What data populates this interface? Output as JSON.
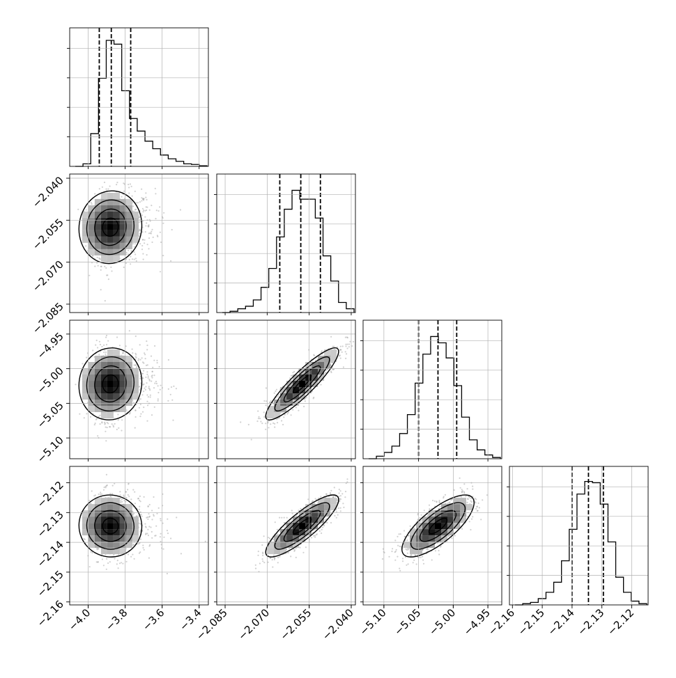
{
  "chart_data": {
    "type": "corner",
    "parameters": [
      {
        "range": [
          -4.1,
          -3.35
        ],
        "ticks": [
          -4.0,
          -3.8,
          -3.6,
          -3.4
        ],
        "tick_labels": [
          "−4.0",
          "−3.8",
          "−3.6",
          "−3.4"
        ],
        "quantiles": [
          -3.94,
          -3.875,
          -3.77
        ],
        "mode": -3.88,
        "std": [
          0.05,
          0.12
        ],
        "hist_counts": [
          0.0,
          0.02,
          0.26,
          0.7,
          1.0,
          0.97,
          0.6,
          0.38,
          0.28,
          0.2,
          0.14,
          0.09,
          0.06,
          0.04,
          0.02,
          0.015,
          0.005
        ]
      },
      {
        "range": [
          -2.088,
          -2.0385
        ],
        "ticks": [
          -2.085,
          -2.07,
          -2.055,
          -2.04
        ],
        "tick_labels": [
          "−2.085",
          "−2.070",
          "−2.055",
          "−2.040"
        ],
        "quantiles": [
          -2.0655,
          -2.058,
          -2.051
        ],
        "mode": -2.0575,
        "std": [
          0.0065,
          0.0065
        ],
        "hist_counts": [
          0.0,
          0.01,
          0.03,
          0.05,
          0.1,
          0.2,
          0.35,
          0.6,
          0.82,
          0.97,
          0.9,
          0.9,
          0.75,
          0.45,
          0.25,
          0.08,
          0.03
        ]
      },
      {
        "range": [
          -5.13,
          -4.93
        ],
        "ticks": [
          -5.1,
          -5.05,
          -5.0,
          -4.95
        ],
        "tick_labels": [
          "−5.10",
          "−5.05",
          "−5.00",
          "−4.95"
        ],
        "quantiles": [
          -5.05,
          -5.022,
          -4.995
        ],
        "mode": -5.022,
        "std": [
          0.026,
          0.026
        ],
        "hist_counts": [
          0.0,
          0.02,
          0.05,
          0.1,
          0.2,
          0.35,
          0.6,
          0.83,
          0.97,
          0.92,
          0.8,
          0.58,
          0.33,
          0.15,
          0.07,
          0.03,
          0.01
        ]
      },
      {
        "range": [
          -2.161,
          -2.1145
        ],
        "ticks": [
          -2.16,
          -2.15,
          -2.14,
          -2.13,
          -2.12
        ],
        "tick_labels": [
          "−2.16",
          "−2.15",
          "−2.14",
          "−2.13",
          "−2.12"
        ],
        "quantiles": [
          -2.14,
          -2.1345,
          -2.1295
        ],
        "mode": -2.1345,
        "std": [
          0.0052,
          0.0052
        ],
        "hist_counts": [
          0.0,
          0.01,
          0.02,
          0.05,
          0.1,
          0.18,
          0.35,
          0.6,
          0.88,
          0.98,
          0.97,
          0.8,
          0.5,
          0.22,
          0.1,
          0.03,
          0.01
        ]
      }
    ],
    "correlations": {
      "1-0": 0.05,
      "2-0": 0.05,
      "3-0": -0.02,
      "2-1": 0.9,
      "3-1": 0.85,
      "3-2": 0.75
    },
    "grid": true,
    "histogram_style": "step",
    "quantile_lines": "dashed",
    "contour_levels": 3
  }
}
